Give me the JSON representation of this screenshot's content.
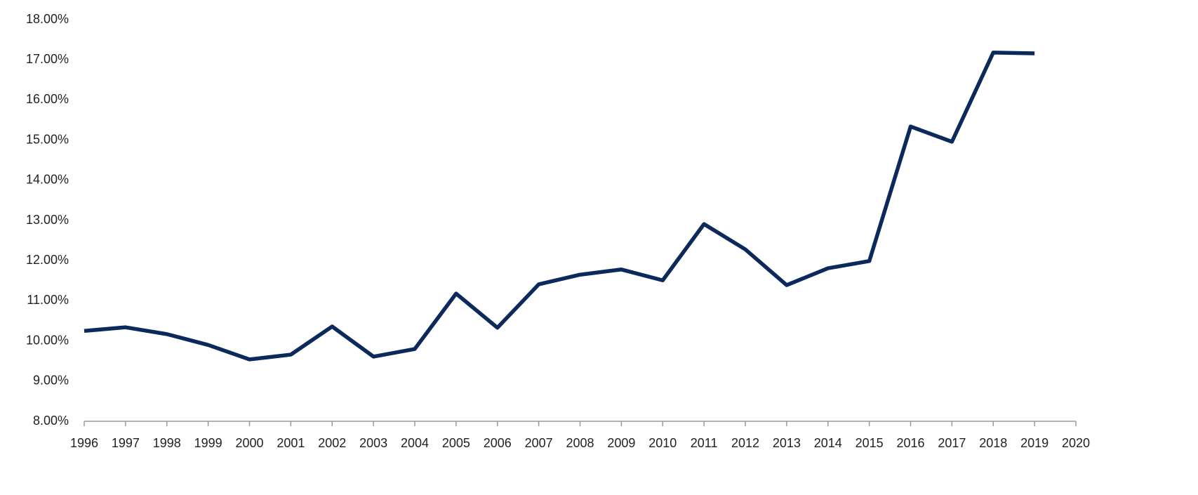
{
  "chart_data": {
    "type": "line",
    "x": [
      1996,
      1997,
      1998,
      1999,
      2000,
      2001,
      2002,
      2003,
      2004,
      2005,
      2006,
      2007,
      2008,
      2009,
      2010,
      2011,
      2012,
      2013,
      2014,
      2015,
      2016,
      2017,
      2018,
      2019
    ],
    "values": [
      10.25,
      10.34,
      10.17,
      9.9,
      9.54,
      9.66,
      10.36,
      9.61,
      9.8,
      11.18,
      10.33,
      11.41,
      11.65,
      11.78,
      11.51,
      12.91,
      12.28,
      11.39,
      11.81,
      11.99,
      15.34,
      14.96,
      17.18,
      17.16
    ],
    "color": "#0b2a5b",
    "xlim": [
      1996,
      2020
    ],
    "xticks": [
      1996,
      1997,
      1998,
      1999,
      2000,
      2001,
      2002,
      2003,
      2004,
      2005,
      2006,
      2007,
      2008,
      2009,
      2010,
      2011,
      2012,
      2013,
      2014,
      2015,
      2016,
      2017,
      2018,
      2019,
      2020
    ],
    "ylim": [
      8,
      18
    ],
    "yticks": [
      {
        "value": 8,
        "label": "8.00%"
      },
      {
        "value": 9,
        "label": "9.00%"
      },
      {
        "value": 10,
        "label": "10.00%"
      },
      {
        "value": 11,
        "label": "11.00%"
      },
      {
        "value": 12,
        "label": "12.00%"
      },
      {
        "value": 13,
        "label": "13.00%"
      },
      {
        "value": 14,
        "label": "14.00%"
      },
      {
        "value": 15,
        "label": "15.00%"
      },
      {
        "value": 16,
        "label": "16.00%"
      },
      {
        "value": 17,
        "label": "17.00%"
      },
      {
        "value": 18,
        "label": "18.00%"
      }
    ],
    "grid": false
  }
}
